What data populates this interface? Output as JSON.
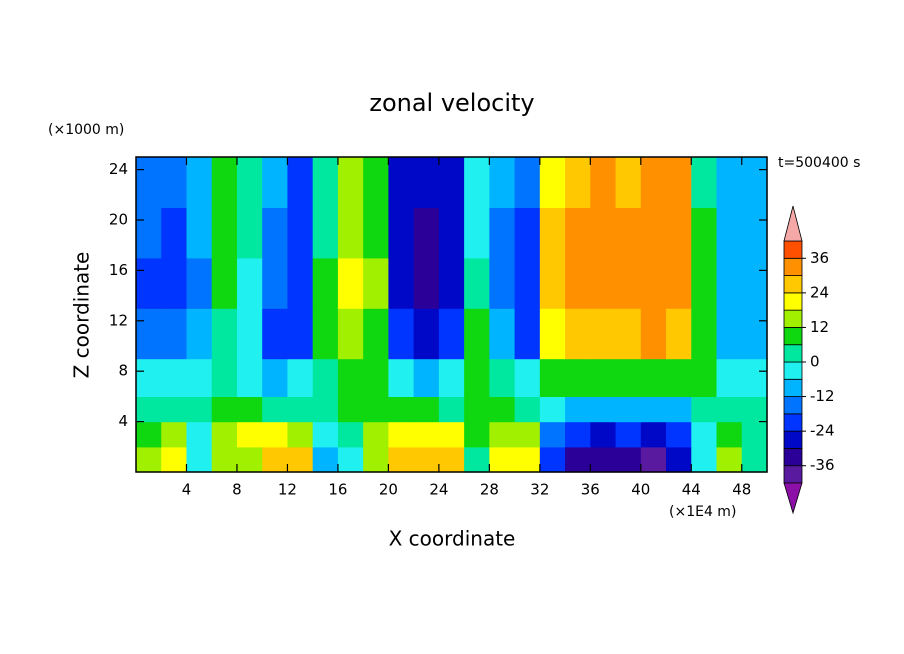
{
  "chart_data": {
    "type": "contour",
    "title": "zonal velocity",
    "y_unit_label": "(×1000 m)",
    "x_unit_label": "(×1E4 m)",
    "time_label": "t=500400 s",
    "x_label": "X coordinate",
    "y_label": "Z coordinate",
    "xlim": [
      0,
      50
    ],
    "ylim": [
      0,
      25
    ],
    "xticks": [
      4,
      8,
      12,
      16,
      20,
      24,
      28,
      32,
      36,
      40,
      44,
      48
    ],
    "yticks": [
      4,
      8,
      12,
      16,
      20,
      24
    ],
    "x_bins": [
      0,
      2,
      4,
      6,
      8,
      10,
      12,
      14,
      16,
      18,
      20,
      22,
      24,
      26,
      28,
      30,
      32,
      34,
      36,
      38,
      40,
      42,
      44,
      46,
      48,
      50
    ],
    "y_bins": [
      0,
      2,
      4,
      6,
      9,
      13,
      17,
      21,
      25
    ],
    "z": [
      [
        15,
        18,
        -6,
        12,
        15,
        24,
        24,
        -12,
        -3,
        12,
        27,
        27,
        24,
        3,
        21,
        18,
        -24,
        -33,
        -36,
        -33,
        -39,
        -30,
        -6,
        15,
        3
      ],
      [
        6,
        12,
        -3,
        15,
        18,
        18,
        15,
        -6,
        3,
        12,
        21,
        21,
        18,
        6,
        15,
        12,
        -18,
        -24,
        -28,
        -24,
        -30,
        -24,
        -3,
        9,
        3
      ],
      [
        0,
        3,
        3,
        6,
        6,
        3,
        3,
        0,
        6,
        6,
        6,
        6,
        3,
        6,
        6,
        3,
        -6,
        -9,
        -12,
        -9,
        -12,
        -9,
        3,
        3,
        0
      ],
      [
        -6,
        -6,
        -3,
        3,
        -3,
        -9,
        -6,
        3,
        9,
        6,
        -6,
        -9,
        -6,
        9,
        3,
        -6,
        6,
        9,
        9,
        9,
        9,
        6,
        6,
        -3,
        -6
      ],
      [
        -15,
        -18,
        -12,
        3,
        -6,
        -24,
        -20,
        9,
        15,
        9,
        -24,
        -28,
        -24,
        6,
        -12,
        -20,
        18,
        27,
        27,
        27,
        30,
        24,
        9,
        -9,
        -12
      ],
      [
        -20,
        -22,
        -15,
        6,
        -3,
        -18,
        -24,
        6,
        18,
        12,
        -28,
        -33,
        -28,
        0,
        -18,
        -24,
        24,
        30,
        33,
        30,
        33,
        30,
        9,
        -10,
        -10
      ],
      [
        -18,
        -20,
        -12,
        9,
        0,
        -15,
        -21,
        3,
        15,
        9,
        -28,
        -33,
        -28,
        -6,
        -16,
        -20,
        24,
        30,
        33,
        30,
        33,
        30,
        6,
        -10,
        -10
      ],
      [
        -15,
        -16,
        -10,
        6,
        3,
        -12,
        -20,
        0,
        12,
        6,
        -26,
        -30,
        -26,
        -6,
        -12,
        -16,
        18,
        27,
        30,
        27,
        33,
        30,
        3,
        -10,
        -10
      ]
    ],
    "colorbar": {
      "levels": [
        -42,
        -36,
        -30,
        -24,
        -18,
        -12,
        -6,
        0,
        6,
        12,
        18,
        24,
        30,
        36,
        42
      ],
      "colors": [
        "#8c10a8",
        "#5a1aa0",
        "#2a0098",
        "#0008c8",
        "#0034ff",
        "#0074ff",
        "#00b4ff",
        "#20f0f0",
        "#00e8a0",
        "#10d810",
        "#a0f000",
        "#ffff00",
        "#ffc800",
        "#ff9000",
        "#ff5000",
        "#ff1818",
        "#f4a8a8"
      ],
      "ticks": [
        -36,
        -24,
        -12,
        0,
        12,
        24,
        36
      ]
    }
  }
}
